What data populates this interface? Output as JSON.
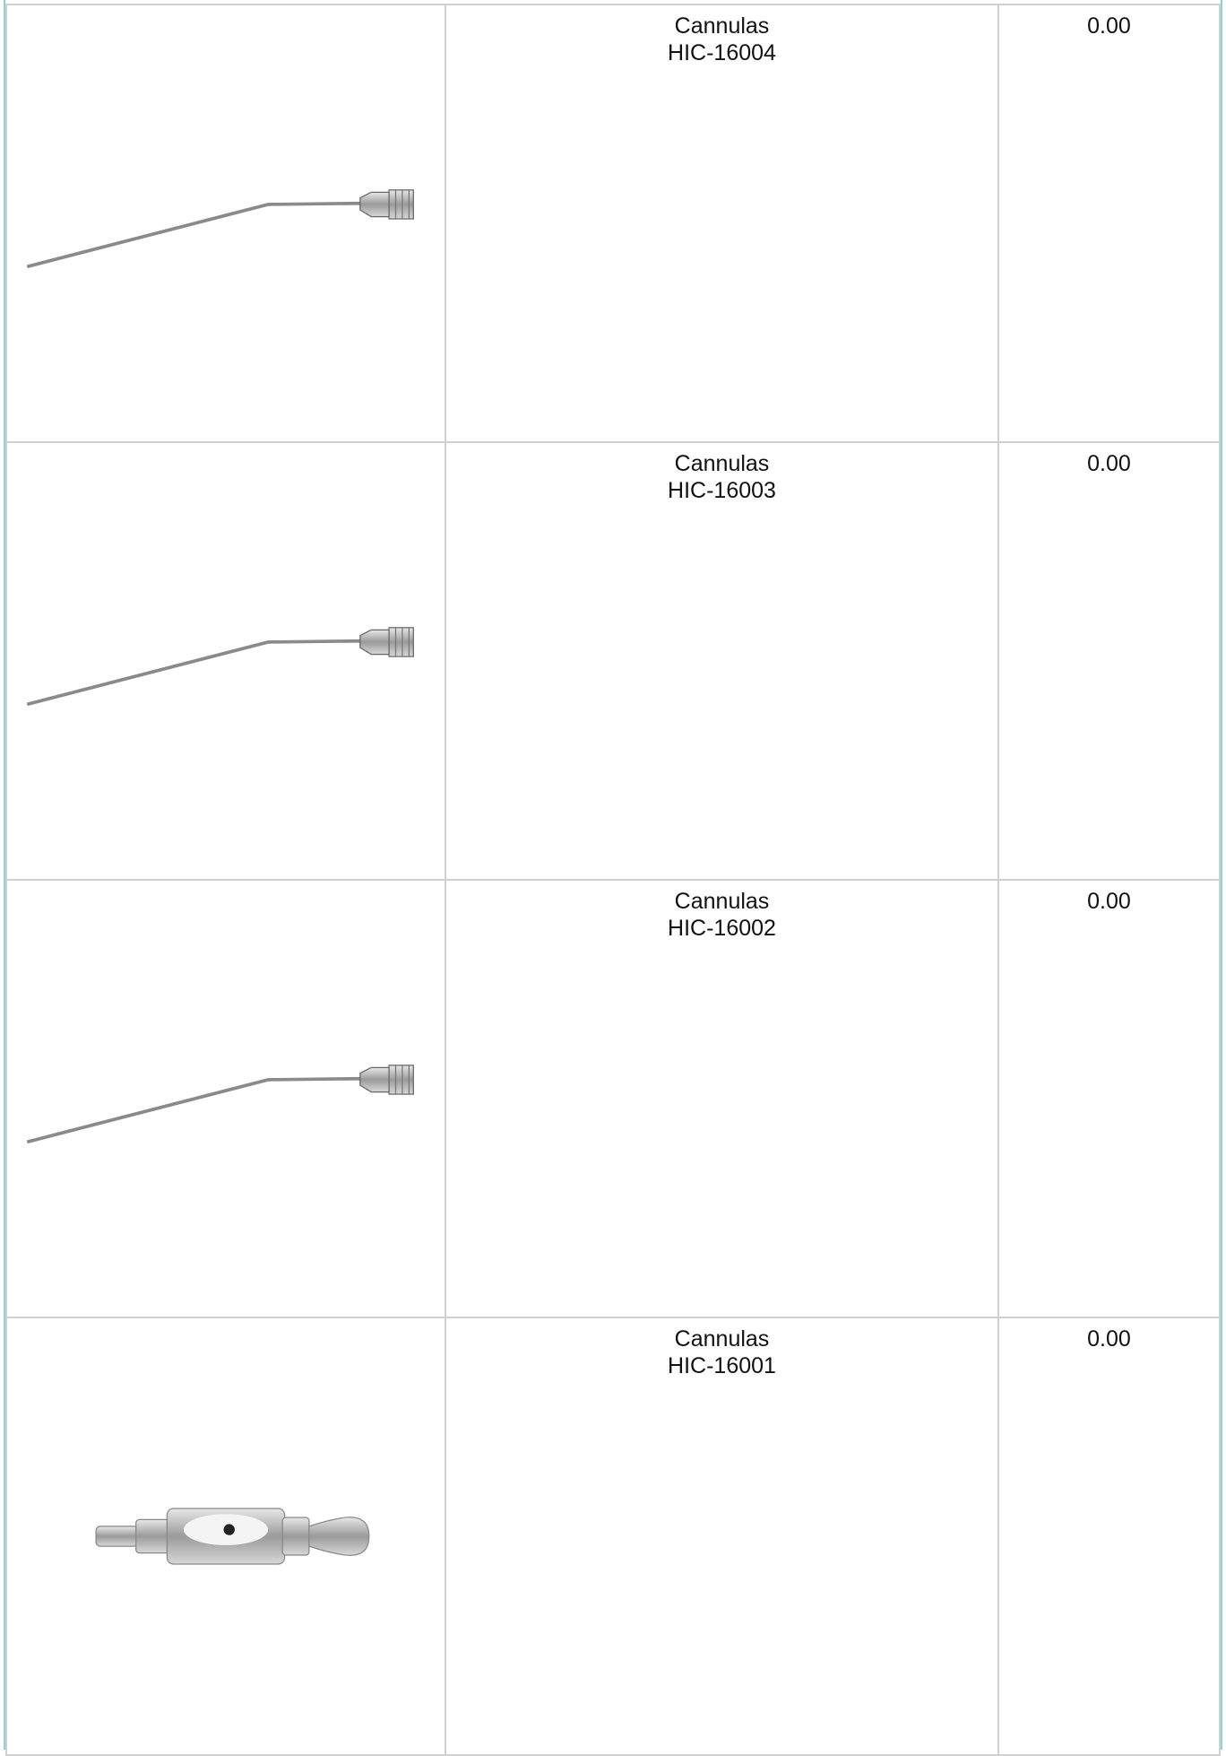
{
  "table": {
    "rows": [
      {
        "name": "Cannulas",
        "code": "HIC-16004",
        "price": "0.00"
      },
      {
        "name": "Cannulas",
        "code": "HIC-16003",
        "price": "0.00"
      },
      {
        "name": "Cannulas",
        "code": "HIC-16002",
        "price": "0.00"
      },
      {
        "name": "Cannulas",
        "code": "HIC-16001",
        "price": "0.00"
      }
    ]
  }
}
